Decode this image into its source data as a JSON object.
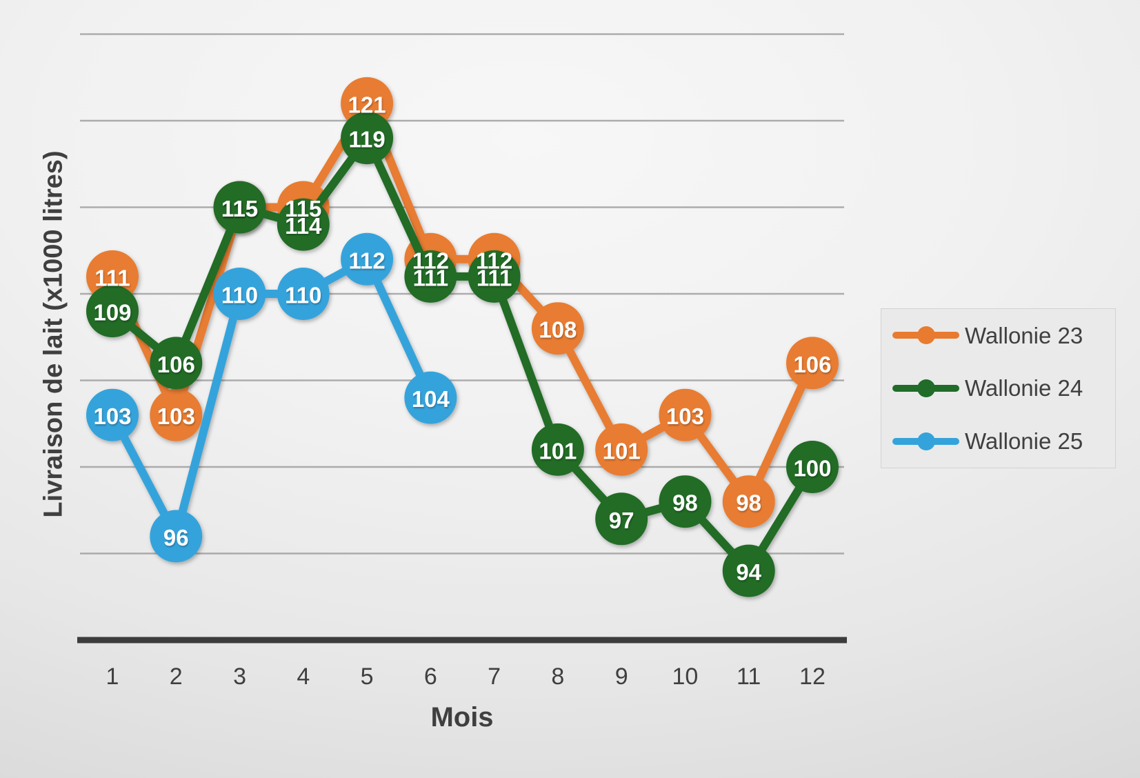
{
  "chart_data": {
    "type": "line",
    "title": "",
    "xlabel": "Mois",
    "ylabel": "Livraison de lait (x1000 litres)",
    "categories": [
      "1",
      "2",
      "3",
      "4",
      "5",
      "6",
      "7",
      "8",
      "9",
      "10",
      "11",
      "12"
    ],
    "ylim": [
      90,
      127
    ],
    "y_gridlines": [
      95,
      100,
      105,
      110,
      115,
      120,
      125
    ],
    "y_axis_baseline": 90,
    "grid": "horizontal-only",
    "y_tick_labels_shown": false,
    "legend_position": "right",
    "marker_style": "filled-circle-with-value-label",
    "series": [
      {
        "name": "Wallonie 23",
        "color": "#E87B30",
        "values": [
          111,
          103,
          115,
          115,
          121,
          112,
          112,
          108,
          101,
          103,
          98,
          106
        ]
      },
      {
        "name": "Wallonie 24",
        "color": "#206C28",
        "values": [
          109,
          106,
          115,
          114,
          119,
          111,
          111,
          101,
          97,
          98,
          94,
          100
        ]
      },
      {
        "name": "Wallonie 25",
        "color": "#34A3DB",
        "values": [
          103,
          96,
          110,
          110,
          112,
          104,
          null,
          null,
          null,
          null,
          null,
          null
        ]
      }
    ]
  },
  "style": {
    "gridline_color": "#A0A0A0",
    "axis_line_color": "#3C3C3C",
    "tick_label_color": "#3F3F3F",
    "data_label_color": "#FFFFFF"
  }
}
